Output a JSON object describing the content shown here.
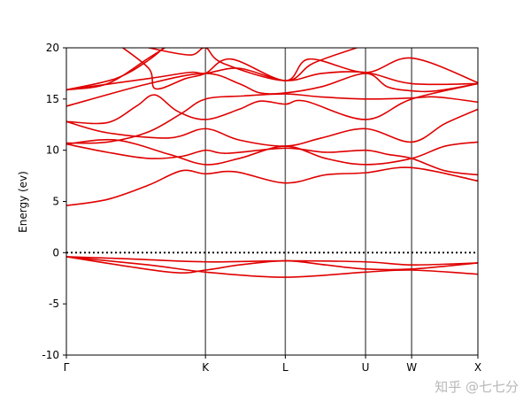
{
  "chart_data": {
    "type": "line",
    "title": "",
    "xlabel": "",
    "ylabel": "Energy (ev)",
    "ylim": [
      -10,
      20
    ],
    "yticks": [
      -10,
      -5,
      0,
      5,
      10,
      15,
      20
    ],
    "xlim": [
      0,
      1
    ],
    "kpoints": [
      {
        "label": "Γ",
        "x": 0
      },
      {
        "label": "K",
        "x": 0.338
      },
      {
        "label": "L",
        "x": 0.532
      },
      {
        "label": "U",
        "x": 0.727
      },
      {
        "label": "W",
        "x": 0.839
      },
      {
        "label": "X",
        "x": 1
      }
    ],
    "fermi_level": 0,
    "band_color": "#e00000",
    "kline_color": "#666666",
    "bands": [
      [
        [
          0,
          -0.4
        ],
        [
          0.15,
          -0.6
        ],
        [
          0.338,
          -0.9
        ],
        [
          0.532,
          -0.8
        ],
        [
          0.727,
          -0.9
        ],
        [
          0.839,
          -1.2
        ],
        [
          1,
          -1.0
        ]
      ],
      [
        [
          0,
          -0.4
        ],
        [
          0.25,
          -1.9
        ],
        [
          0.338,
          -1.7
        ],
        [
          0.42,
          -1.2
        ],
        [
          0.532,
          -0.8
        ],
        [
          0.63,
          -1.2
        ],
        [
          0.727,
          -1.6
        ],
        [
          0.839,
          -1.6
        ],
        [
          1,
          -1.0
        ]
      ],
      [
        [
          0,
          -0.4
        ],
        [
          0.2,
          -1.2
        ],
        [
          0.338,
          -1.9
        ],
        [
          0.532,
          -2.4
        ],
        [
          0.727,
          -1.9
        ],
        [
          0.839,
          -1.7
        ],
        [
          1,
          -2.1
        ]
      ],
      [
        [
          0,
          4.6
        ],
        [
          0.1,
          5.2
        ],
        [
          0.2,
          6.6
        ],
        [
          0.28,
          8.0
        ],
        [
          0.338,
          7.7
        ],
        [
          0.41,
          7.9
        ],
        [
          0.532,
          6.8
        ],
        [
          0.63,
          7.6
        ],
        [
          0.727,
          7.8
        ],
        [
          0.839,
          8.3
        ],
        [
          1,
          7.0
        ]
      ],
      [
        [
          0,
          10.6
        ],
        [
          0.1,
          9.8
        ],
        [
          0.2,
          9.2
        ],
        [
          0.28,
          9.4
        ],
        [
          0.338,
          10.0
        ],
        [
          0.39,
          9.7
        ],
        [
          0.532,
          10.2
        ],
        [
          0.63,
          9.8
        ],
        [
          0.727,
          10.0
        ],
        [
          0.78,
          9.6
        ],
        [
          0.839,
          9.2
        ],
        [
          0.92,
          8.0
        ],
        [
          1,
          7.6
        ]
      ],
      [
        [
          0,
          10.6
        ],
        [
          0.12,
          11.0
        ],
        [
          0.25,
          9.6
        ],
        [
          0.338,
          8.6
        ],
        [
          0.42,
          9.2
        ],
        [
          0.532,
          10.4
        ],
        [
          0.63,
          9.2
        ],
        [
          0.727,
          8.6
        ],
        [
          0.839,
          9.2
        ],
        [
          0.92,
          10.4
        ],
        [
          1,
          10.8
        ]
      ],
      [
        [
          0,
          12.8
        ],
        [
          0.1,
          11.7
        ],
        [
          0.25,
          11.2
        ],
        [
          0.338,
          12.1
        ],
        [
          0.42,
          11.0
        ],
        [
          0.532,
          10.4
        ],
        [
          0.62,
          11.2
        ],
        [
          0.727,
          12.1
        ],
        [
          0.839,
          10.8
        ],
        [
          0.92,
          12.6
        ],
        [
          1,
          14.0
        ]
      ],
      [
        [
          0,
          10.7
        ],
        [
          0.1,
          10.8
        ],
        [
          0.2,
          11.8
        ],
        [
          0.28,
          13.6
        ],
        [
          0.338,
          15.0
        ],
        [
          0.43,
          15.3
        ],
        [
          0.532,
          15.5
        ],
        [
          0.62,
          15.2
        ],
        [
          0.727,
          15.0
        ],
        [
          0.839,
          15.1
        ],
        [
          0.9,
          15.2
        ],
        [
          1,
          14.7
        ]
      ],
      [
        [
          0,
          12.8
        ],
        [
          0.1,
          12.7
        ],
        [
          0.17,
          14.3
        ],
        [
          0.215,
          15.4
        ],
        [
          0.27,
          13.8
        ],
        [
          0.338,
          13.0
        ],
        [
          0.42,
          14.0
        ],
        [
          0.47,
          14.8
        ],
        [
          0.532,
          14.5
        ],
        [
          0.58,
          14.8
        ],
        [
          0.727,
          13.0
        ],
        [
          0.839,
          15.0
        ],
        [
          1,
          16.5
        ]
      ],
      [
        [
          0,
          14.3
        ],
        [
          0.2,
          16.5
        ],
        [
          0.338,
          17.5
        ],
        [
          0.42,
          16.5
        ],
        [
          0.47,
          15.6
        ],
        [
          0.532,
          15.6
        ],
        [
          0.62,
          16.2
        ],
        [
          0.727,
          17.5
        ],
        [
          0.78,
          16.2
        ],
        [
          0.839,
          15.8
        ],
        [
          0.9,
          15.8
        ],
        [
          1,
          16.5
        ]
      ],
      [
        [
          0,
          15.9
        ],
        [
          0.2,
          17.0
        ],
        [
          0.3,
          17.6
        ],
        [
          0.338,
          17.5
        ],
        [
          0.42,
          18.0
        ],
        [
          0.532,
          16.8
        ],
        [
          0.62,
          17.5
        ],
        [
          0.727,
          17.6
        ],
        [
          0.839,
          16.5
        ],
        [
          1,
          16.5
        ]
      ],
      [
        [
          0,
          15.9
        ],
        [
          0.12,
          17.0
        ],
        [
          0.2,
          18.8
        ],
        [
          0.25,
          20.5
        ]
      ],
      [
        [
          0,
          15.9
        ],
        [
          0.1,
          16.5
        ],
        [
          0.2,
          19.0
        ],
        [
          0.27,
          20.8
        ]
      ],
      [
        [
          0.12,
          20.5
        ],
        [
          0.2,
          18.0
        ],
        [
          0.217,
          16.0
        ],
        [
          0.29,
          17.0
        ],
        [
          0.338,
          17.5
        ],
        [
          0.4,
          18.9
        ],
        [
          0.532,
          16.8
        ],
        [
          0.59,
          18.9
        ],
        [
          0.727,
          17.6
        ],
        [
          0.839,
          19.0
        ],
        [
          1,
          16.6
        ]
      ],
      [
        [
          0.2,
          20.0
        ],
        [
          0.3,
          19.3
        ],
        [
          0.338,
          20.0
        ],
        [
          0.38,
          18.5
        ],
        [
          0.532,
          16.8
        ],
        [
          0.6,
          18.5
        ],
        [
          0.72,
          20.2
        ]
      ]
    ]
  },
  "watermark": "知乎 @七七分"
}
